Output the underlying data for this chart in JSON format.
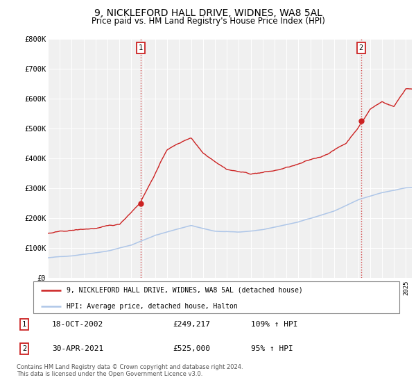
{
  "title": "9, NICKLEFORD HALL DRIVE, WIDNES, WA8 5AL",
  "subtitle": "Price paid vs. HM Land Registry's House Price Index (HPI)",
  "title_fontsize": 10,
  "subtitle_fontsize": 8.5,
  "ylim": [
    0,
    800000
  ],
  "yticks": [
    0,
    100000,
    200000,
    300000,
    400000,
    500000,
    600000,
    700000,
    800000
  ],
  "ytick_labels": [
    "£0",
    "£100K",
    "£200K",
    "£300K",
    "£400K",
    "£500K",
    "£600K",
    "£700K",
    "£800K"
  ],
  "hpi_color": "#aec6e8",
  "price_color": "#cc2222",
  "marker1_t": 2002.75,
  "marker2_t": 2021.25,
  "marker1_price": 249217,
  "marker2_price": 525000,
  "legend_entries": [
    "9, NICKLEFORD HALL DRIVE, WIDNES, WA8 5AL (detached house)",
    "HPI: Average price, detached house, Halton"
  ],
  "table_rows": [
    [
      "1",
      "18-OCT-2002",
      "£249,217",
      "109% ↑ HPI"
    ],
    [
      "2",
      "30-APR-2021",
      "£525,000",
      "95% ↑ HPI"
    ]
  ],
  "footer": "Contains HM Land Registry data © Crown copyright and database right 2024.\nThis data is licensed under the Open Government Licence v3.0.",
  "background_color": "#ffffff",
  "plot_bg_color": "#f0f0f0",
  "grid_color": "#ffffff"
}
